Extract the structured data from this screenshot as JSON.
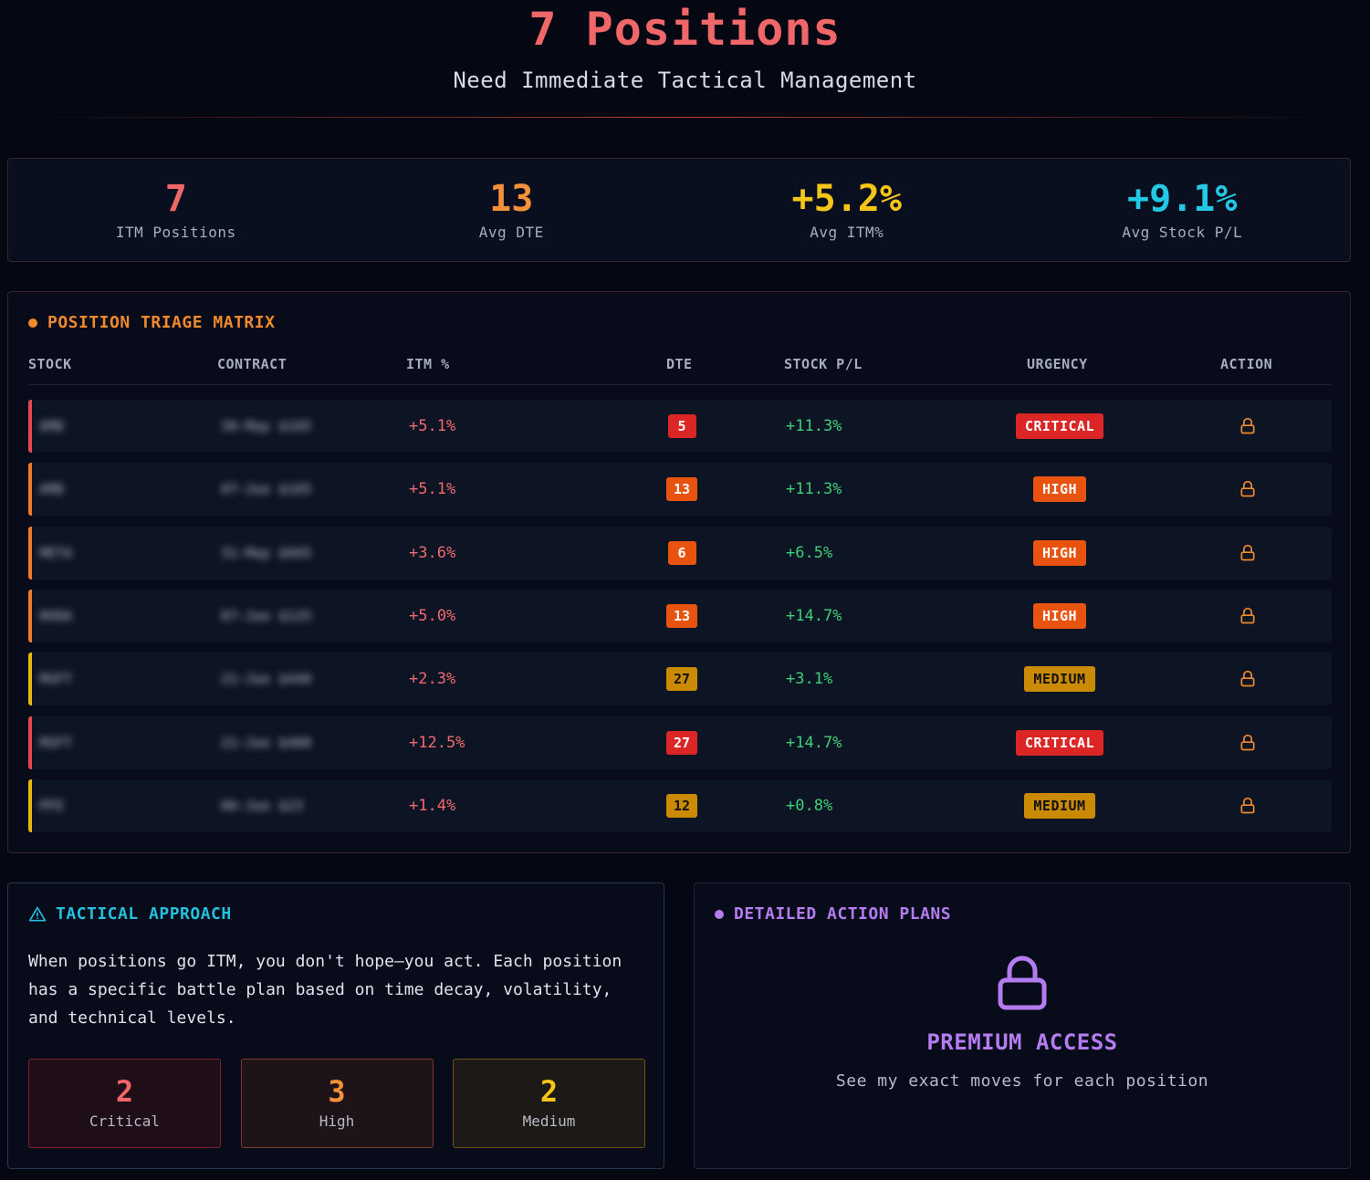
{
  "hero": {
    "title": "7 Positions",
    "subtitle": "Need Immediate Tactical Management"
  },
  "stats": [
    {
      "value": "7",
      "label": "ITM Positions",
      "color": "#f0676a"
    },
    {
      "value": "13",
      "label": "Avg DTE",
      "color": "#f5903a"
    },
    {
      "value": "+5.2%",
      "label": "Avg ITM%",
      "color": "#f5c518"
    },
    {
      "value": "+9.1%",
      "label": "Avg Stock P/L",
      "color": "#22c8e4"
    }
  ],
  "matrix": {
    "title": "POSITION TRIAGE MATRIX",
    "headers": [
      "STOCK",
      "CONTRACT",
      "ITM %",
      "DTE",
      "STOCK P/L",
      "URGENCY",
      "ACTION"
    ],
    "rows": [
      {
        "stock": "AMD",
        "contract": "30-May $165",
        "itm": "+5.1%",
        "dte": "5",
        "pl": "+11.3%",
        "urgency": "CRITICAL",
        "level": "critical"
      },
      {
        "stock": "AMD",
        "contract": "07-Jun $165",
        "itm": "+5.1%",
        "dte": "13",
        "pl": "+11.3%",
        "urgency": "HIGH",
        "level": "high"
      },
      {
        "stock": "META",
        "contract": "31-May $665",
        "itm": "+3.6%",
        "dte": "6",
        "pl": "+6.5%",
        "urgency": "HIGH",
        "level": "high"
      },
      {
        "stock": "NVDA",
        "contract": "07-Jun $125",
        "itm": "+5.0%",
        "dte": "13",
        "pl": "+14.7%",
        "urgency": "HIGH",
        "level": "high"
      },
      {
        "stock": "MSFT",
        "contract": "21-Jun $440",
        "itm": "+2.3%",
        "dte": "27",
        "pl": "+3.1%",
        "urgency": "MEDIUM",
        "level": "medium"
      },
      {
        "stock": "MSFT",
        "contract": "21-Jun $400",
        "itm": "+12.5%",
        "dte": "27",
        "pl": "+14.7%",
        "urgency": "CRITICAL",
        "level": "critical"
      },
      {
        "stock": "PFE",
        "contract": "06-Jun $23",
        "itm": "+1.4%",
        "dte": "12",
        "pl": "+0.8%",
        "urgency": "MEDIUM",
        "level": "medium"
      }
    ]
  },
  "levels": {
    "critical": {
      "color": "#dc2626",
      "text": "#ffffff",
      "bar": "#e5484d"
    },
    "high": {
      "color": "#e8540f",
      "text": "#ffffff",
      "bar": "#f07a2a"
    },
    "medium": {
      "color": "#ca8a04",
      "text": "#111111",
      "bar": "#e5b80b"
    }
  },
  "tactical": {
    "title": "TACTICAL APPROACH",
    "body": "When positions go ITM, you don't hope—you act. Each position has a specific battle plan based on time decay, volatility, and technical levels.",
    "counts": [
      {
        "value": "2",
        "label": "Critical",
        "color": "#f0676a",
        "bg": "#1f0d18",
        "border": "#7a2230"
      },
      {
        "value": "3",
        "label": "High",
        "color": "#f5903a",
        "bg": "#1e1418",
        "border": "#7a3a24"
      },
      {
        "value": "2",
        "label": "Medium",
        "color": "#f5c518",
        "bg": "#1d1916",
        "border": "#6e5418"
      }
    ]
  },
  "plans": {
    "title": "DETAILED ACTION PLANS",
    "premium_title": "PREMIUM ACCESS",
    "premium_sub": "See my exact moves for each position"
  }
}
